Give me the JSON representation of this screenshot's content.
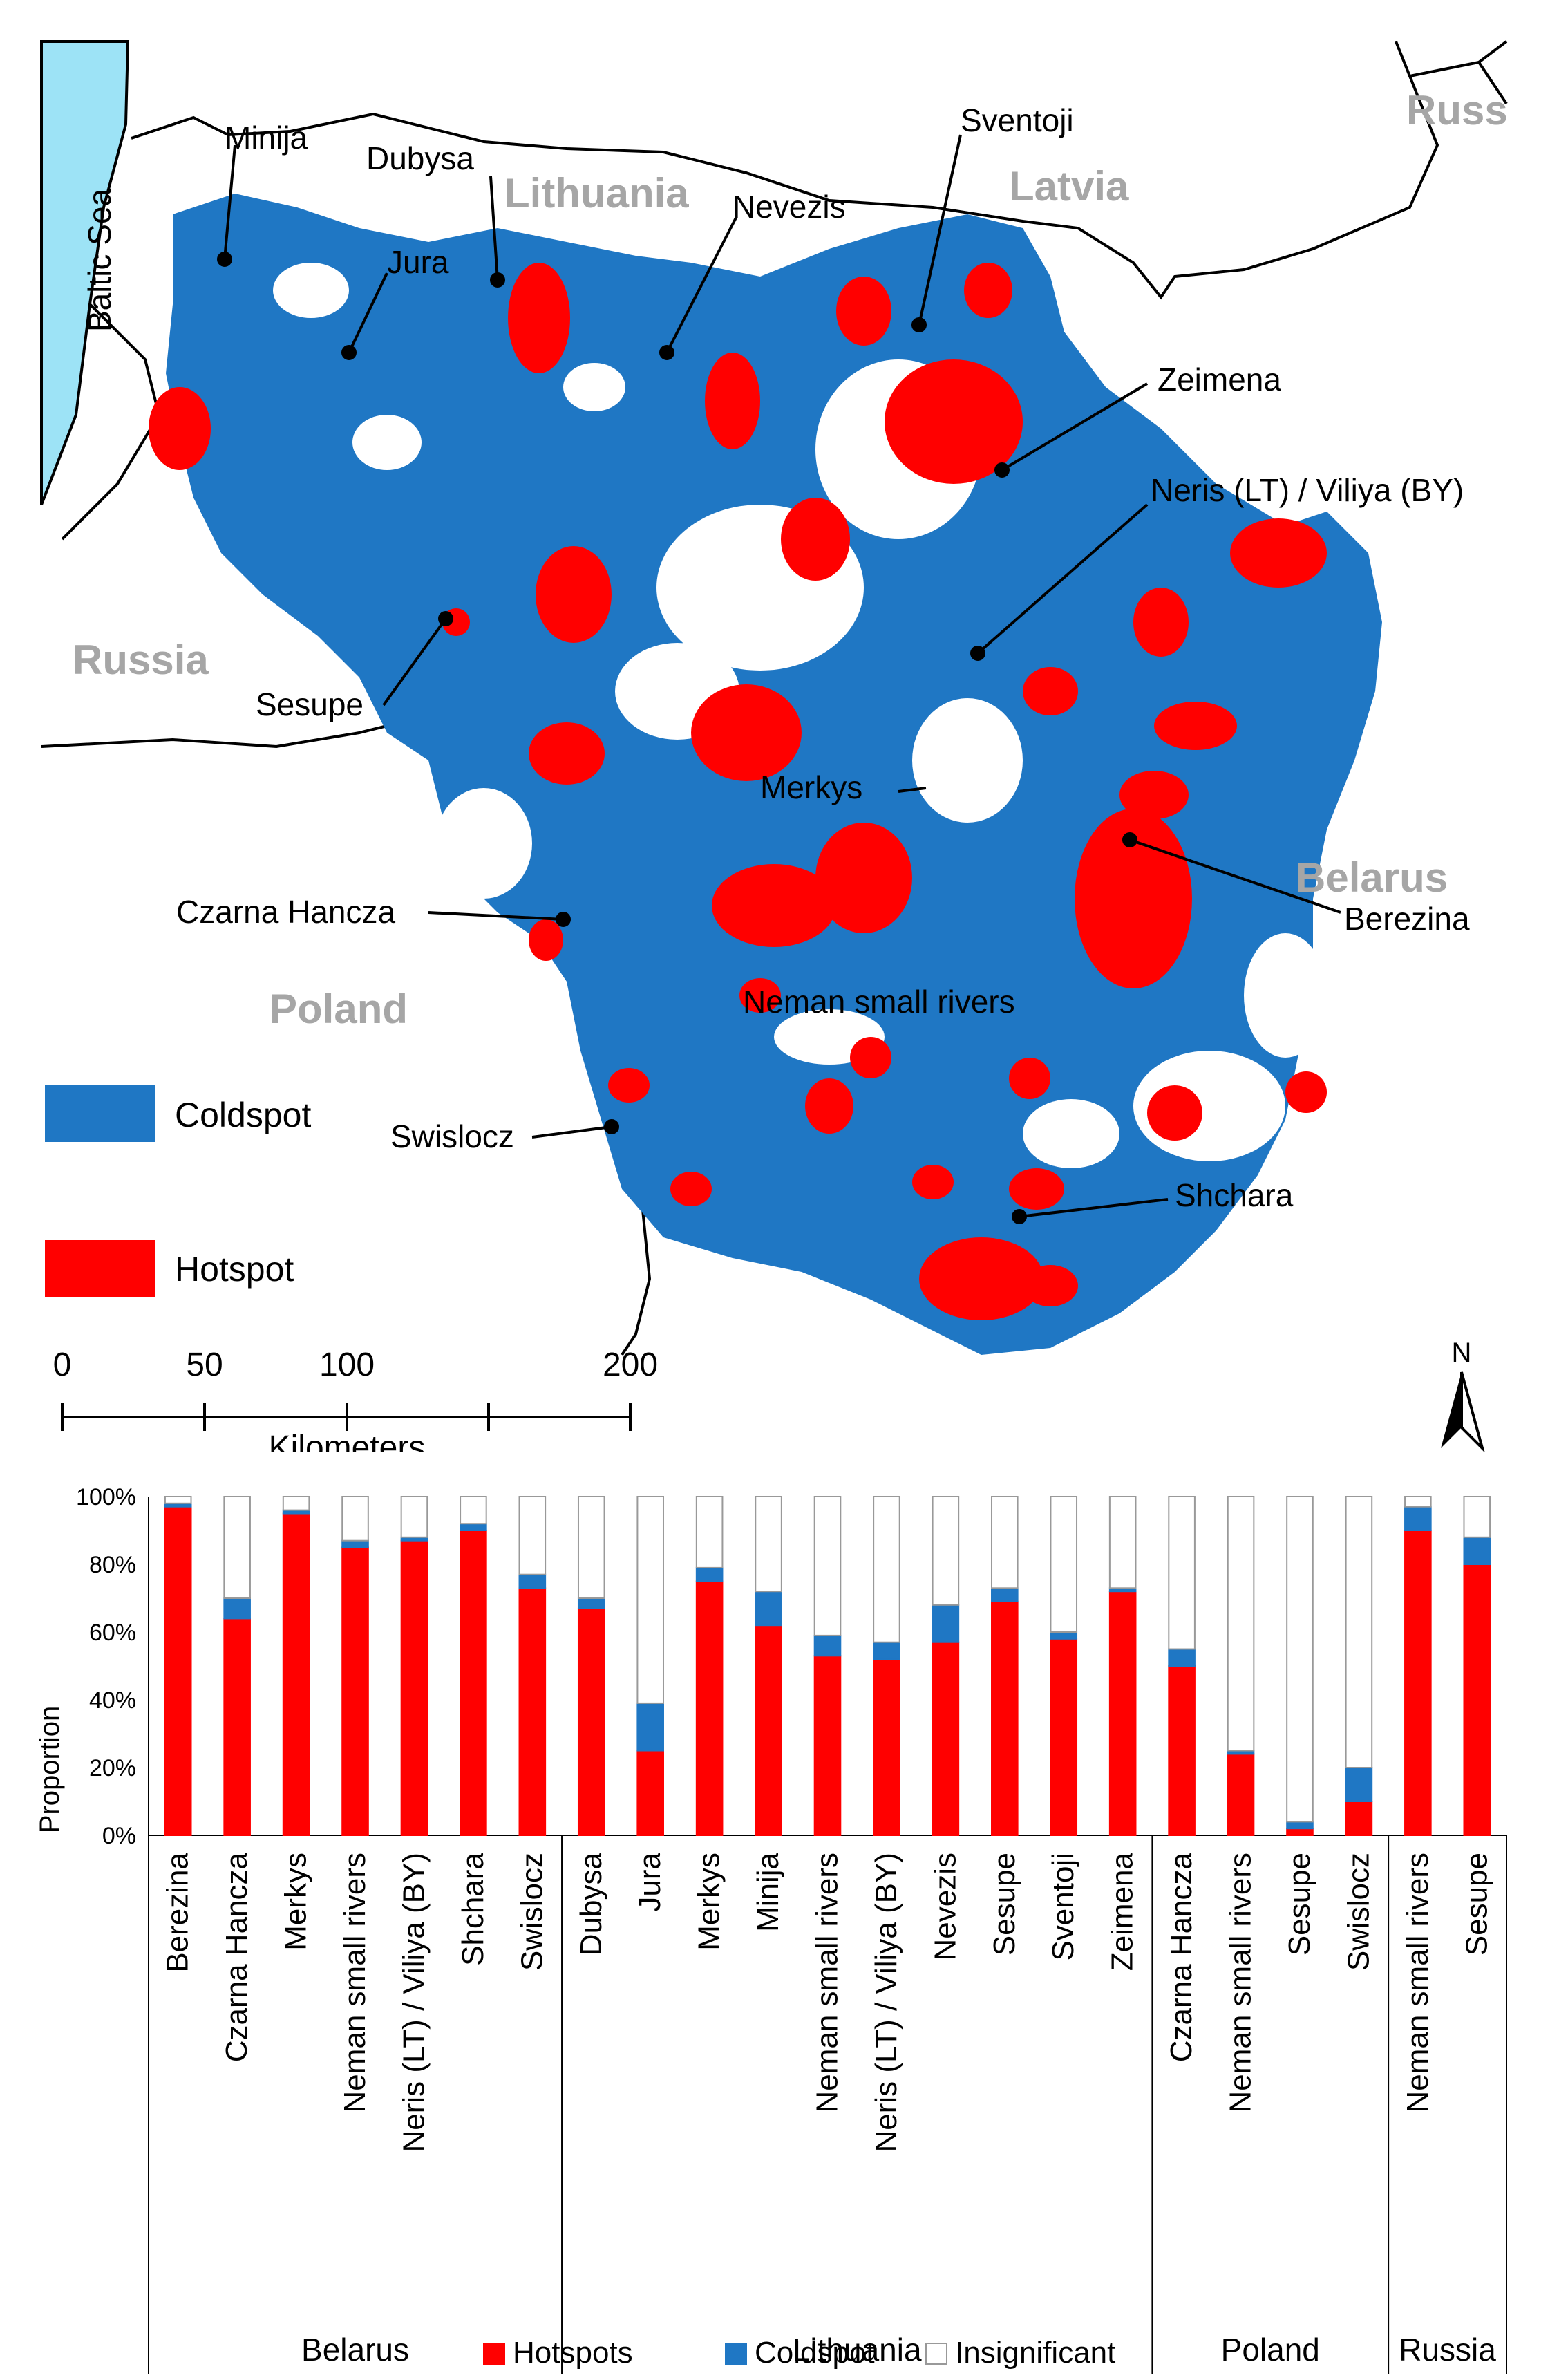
{
  "map": {
    "sea_label": "Baltic Sea",
    "countries": {
      "lithuania": "Lithuania",
      "latvia": "Latvia",
      "russia_ne": "Russ",
      "russia_w": "Russia",
      "belarus": "Belarus",
      "poland": "Poland"
    },
    "rivers": {
      "minija": "Minija",
      "dubysa": "Dubysa",
      "jura": "Jura",
      "nevezis": "Nevezis",
      "sventoji": "Sventoji",
      "zeimena": "Zeimena",
      "neris": "Neris (LT) / Viliya (BY)",
      "sesupe": "Sesupe",
      "merkys": "Merkys",
      "czarna": "Czarna Hancza",
      "berezina": "Berezina",
      "neman": "Neman small rivers",
      "swislocz": "Swislocz",
      "shchara": "Shchara"
    },
    "legend": {
      "coldspot": "Coldspot",
      "hotspot": "Hotspot"
    },
    "scale": {
      "ticks": [
        "0",
        "50",
        "100",
        "200"
      ],
      "unit": "Kilometers"
    },
    "north": "N",
    "colors": {
      "coldspot": "#1f77c4",
      "hotspot": "#ff0000",
      "sea": "#9de3f6"
    }
  },
  "chart_data": {
    "type": "bar",
    "stacked": true,
    "ylabel": "Proportion",
    "ylim": [
      0,
      100
    ],
    "yticks": [
      "0%",
      "20%",
      "40%",
      "60%",
      "80%",
      "100%"
    ],
    "groups": [
      {
        "name": "Belarus",
        "categories": [
          "Berezina",
          "Czarna Hancza",
          "Merkys",
          "Neman small rivers",
          "Neris (LT) / Viliya (BY)",
          "Shchara",
          "Swislocz"
        ]
      },
      {
        "name": "Lithuania",
        "categories": [
          "Dubysa",
          "Jura",
          "Merkys",
          "Minija",
          "Neman small rivers",
          "Neris (LT) / Viliya (BY)",
          "Nevezis",
          "Sesupe",
          "Sventoji",
          "Zeimena"
        ]
      },
      {
        "name": "Poland",
        "categories": [
          "Czarna Hancza",
          "Neman small rivers",
          "Sesupe",
          "Swislocz"
        ]
      },
      {
        "name": "Russia",
        "categories": [
          "Neman small rivers",
          "Sesupe"
        ]
      }
    ],
    "series": [
      {
        "name": "Hotspots",
        "color": "#ff0000",
        "values": [
          97,
          64,
          95,
          85,
          87,
          90,
          73,
          67,
          25,
          75,
          62,
          53,
          52,
          57,
          69,
          58,
          72,
          50,
          24,
          2,
          10,
          90,
          80
        ]
      },
      {
        "name": "Coldspot",
        "color": "#1f77c4",
        "values": [
          1,
          6,
          1,
          2,
          1,
          2,
          4,
          3,
          14,
          4,
          10,
          6,
          5,
          11,
          4,
          2,
          1,
          5,
          1,
          2,
          10,
          7,
          8
        ]
      },
      {
        "name": "Insignificant",
        "color": "#ffffff",
        "values": [
          2,
          30,
          4,
          13,
          12,
          8,
          23,
          30,
          61,
          21,
          28,
          41,
          43,
          32,
          27,
          40,
          27,
          45,
          75,
          96,
          80,
          3,
          12
        ]
      }
    ],
    "legend": [
      "Hotspots",
      "Coldspot",
      "Insignificant"
    ]
  }
}
